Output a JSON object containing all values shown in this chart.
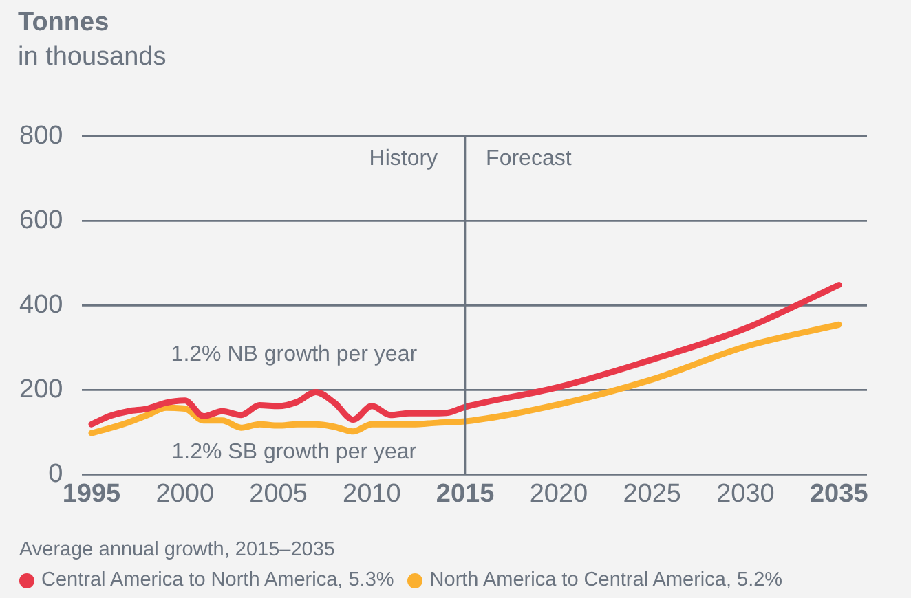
{
  "chart_data": {
    "type": "line",
    "title": "Tonnes",
    "subtitle": "in thousands",
    "legend_title": "Average annual growth, 2015–2035",
    "legend": "bottom",
    "grid": "y",
    "marker": "none",
    "line_style": "solid",
    "xlim": [
      1994.5,
      2036.5
    ],
    "xticks": [
      1995,
      2000,
      2005,
      2010,
      2015,
      2020,
      2025,
      2030,
      2035
    ],
    "ylim": [
      0,
      800
    ],
    "yticks": [
      0,
      200,
      400,
      600,
      800
    ],
    "ref_lines": [
      {
        "axis": "x",
        "value": 2015,
        "color": "#6b7480"
      }
    ],
    "annotations": [
      "History",
      "Forecast",
      "1.2% NB growth per year",
      "1.2% SB growth per year"
    ],
    "series": [
      {
        "name": "Central America to North America, 5.3%",
        "color": "#e8394a",
        "x": [
          1995,
          1996,
          1997,
          1998,
          1999,
          2000,
          2001,
          2002,
          2003,
          2004,
          2005,
          2006,
          2007,
          2008,
          2009,
          2010,
          2011,
          2012,
          2013,
          2014,
          2015,
          2020,
          2025,
          2030,
          2035
        ],
        "values": [
          119,
          139,
          150,
          156,
          170,
          175,
          138,
          150,
          141,
          164,
          162,
          172,
          195,
          170,
          130,
          162,
          141,
          145,
          145,
          146,
          160,
          207,
          272,
          346,
          449
        ]
      },
      {
        "name": "North America to Central America, 5.2%",
        "color": "#fbb030",
        "x": [
          1995,
          1996,
          1997,
          1998,
          1999,
          2000,
          2001,
          2002,
          2003,
          2004,
          2005,
          2006,
          2007,
          2008,
          2009,
          2010,
          2011,
          2012,
          2013,
          2014,
          2015,
          2020,
          2025,
          2030,
          2035
        ],
        "values": [
          98,
          110,
          124,
          141,
          158,
          156,
          128,
          128,
          111,
          119,
          116,
          119,
          119,
          113,
          102,
          119,
          119,
          119,
          121,
          124,
          126,
          166,
          225,
          303,
          355
        ]
      }
    ]
  }
}
